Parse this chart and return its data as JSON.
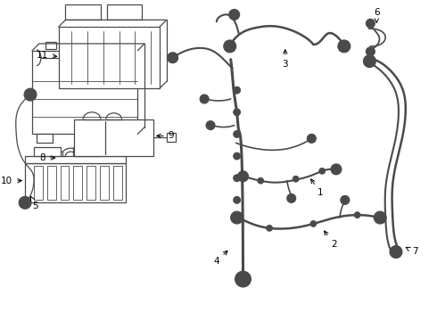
{
  "bg_color": "#ffffff",
  "line_color": "#4a4a4a",
  "lw": 0.9,
  "fs": 7.5,
  "figsize": [
    4.9,
    3.6
  ],
  "dpi": 100
}
